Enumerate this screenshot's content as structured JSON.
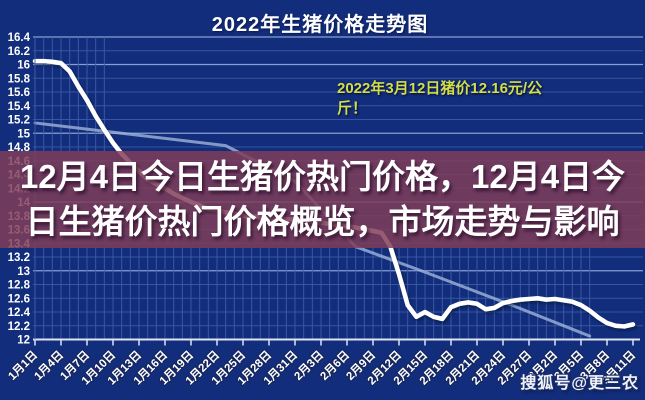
{
  "title": "2022年生猪价格走势图",
  "banner": {
    "line1": "12月4日今日生猪价热门价格，12月4日今",
    "line2": "日生猪价热门价格概览，市场走势与影响",
    "full_text": "12月4日今日生猪价热门价格，12月4日今日生猪价热门价格概览，市场走势与影响",
    "bg_color": "#813D58"
  },
  "annotation": {
    "line1": "2022年3月12日猪价12.16元/公",
    "line2": "斤！",
    "full_text": "2022年3月12日猪价12.16元/公斤！",
    "color": "#D3DF45"
  },
  "watermark": {
    "text": "搜狐号@更三农"
  },
  "colors": {
    "background": "#122D7B",
    "grid_minor": "#3E5CA8",
    "grid_major": "#8FA6D6",
    "axis": "#DDE4F4",
    "price_line": "#FFFFFF",
    "trend_line": "#9FB4DC",
    "tick_label": "#FFFFFF"
  },
  "chart_data": {
    "type": "line",
    "title": "2022年生猪价格走势图",
    "ylabel": "",
    "xlabel": "",
    "ylim": [
      12,
      16.4
    ],
    "y_tick_step": 0.2,
    "grid": "on",
    "x_unit": "day",
    "x_tick_every_n_days": 3,
    "categories": [
      "1月1日",
      "1月4日",
      "1月7日",
      "1月10日",
      "1月13日",
      "1月16日",
      "1月19日",
      "1月22日",
      "1月25日",
      "1月28日",
      "1月31日",
      "2月3日",
      "2月6日",
      "2月9日",
      "2月12日",
      "2月15日",
      "2月18日",
      "2月21日",
      "2月24日",
      "2月27日",
      "3月2日",
      "3月5日",
      "3月8日",
      "3月11日"
    ],
    "series": [
      {
        "name": "price",
        "daily_values": [
          16.05,
          16.05,
          16.04,
          16.02,
          15.9,
          15.68,
          15.48,
          15.25,
          15.05,
          14.86,
          14.7,
          14.57,
          14.45,
          14.33,
          14.26,
          14.2,
          14.12,
          14.06,
          14.0,
          13.95,
          13.9,
          13.88,
          13.85,
          13.83,
          13.8,
          13.79,
          13.78,
          13.77,
          13.76,
          13.75,
          13.75,
          13.73,
          13.71,
          13.7,
          13.68,
          13.67,
          13.65,
          13.63,
          13.6,
          13.58,
          13.55,
          13.35,
          12.95,
          12.5,
          12.33,
          12.4,
          12.33,
          12.3,
          12.47,
          12.52,
          12.54,
          12.52,
          12.44,
          12.46,
          12.53,
          12.56,
          12.58,
          12.59,
          12.6,
          12.58,
          12.59,
          12.57,
          12.55,
          12.5,
          12.42,
          12.32,
          12.24,
          12.2,
          12.19,
          12.22
        ]
      }
    ],
    "trend_points": [
      [
        0,
        15.15
      ],
      [
        10,
        15.0
      ],
      [
        22,
        14.82
      ],
      [
        30,
        14.3
      ],
      [
        37,
        13.35
      ],
      [
        45,
        12.98
      ],
      [
        55,
        12.5
      ],
      [
        64,
        12.05
      ]
    ],
    "annotation_value": "2022年3月12日猪价12.16元/公斤！"
  }
}
